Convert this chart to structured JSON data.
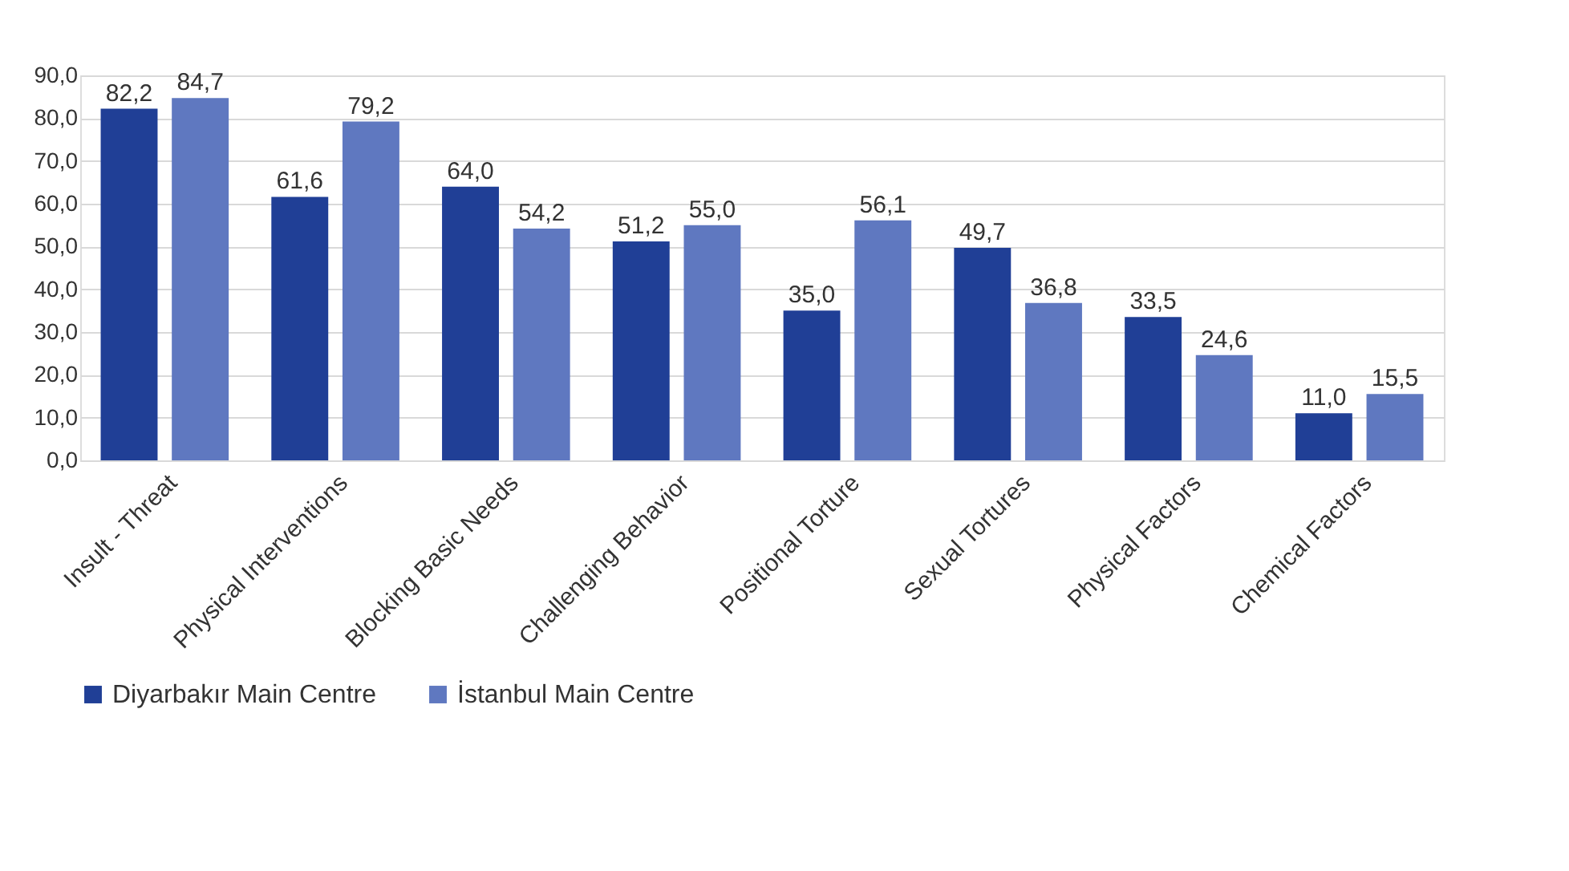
{
  "chart_data": {
    "type": "bar",
    "categories": [
      "Insult - Threat",
      "Physical Interventions",
      "Blocking Basic Needs",
      "Challenging Behavior",
      "Positional Torture",
      "Sexual Tortures",
      "Physical Factors",
      "Chemical Factors"
    ],
    "series": [
      {
        "name": "Diyarbakır Main Centre",
        "color": "#203f96",
        "values": [
          82.2,
          61.6,
          64.0,
          51.2,
          35.0,
          49.7,
          33.5,
          11.0
        ],
        "value_labels": [
          "82,2",
          "61,6",
          "64,0",
          "51,2",
          "35,0",
          "49,7",
          "33,5",
          "11,0"
        ]
      },
      {
        "name": "İstanbul Main Centre",
        "color": "#5f78c0",
        "values": [
          84.7,
          79.2,
          54.2,
          55.0,
          56.1,
          36.8,
          24.6,
          15.5
        ],
        "value_labels": [
          "84,7",
          "79,2",
          "54,2",
          "55,0",
          "56,1",
          "36,8",
          "24,6",
          "15,5"
        ]
      }
    ],
    "ylim": [
      0,
      90
    ],
    "yticks": [
      {
        "value": 0,
        "label": "0,0"
      },
      {
        "value": 10,
        "label": "10,0"
      },
      {
        "value": 20,
        "label": "20,0"
      },
      {
        "value": 30,
        "label": "30,0"
      },
      {
        "value": 40,
        "label": "40,0"
      },
      {
        "value": 50,
        "label": "50,0"
      },
      {
        "value": 60,
        "label": "60,0"
      },
      {
        "value": 70,
        "label": "70,0"
      },
      {
        "value": 80,
        "label": "80,0"
      },
      {
        "value": 90,
        "label": "90,0"
      }
    ],
    "grid": "y",
    "legend": "bottom"
  }
}
